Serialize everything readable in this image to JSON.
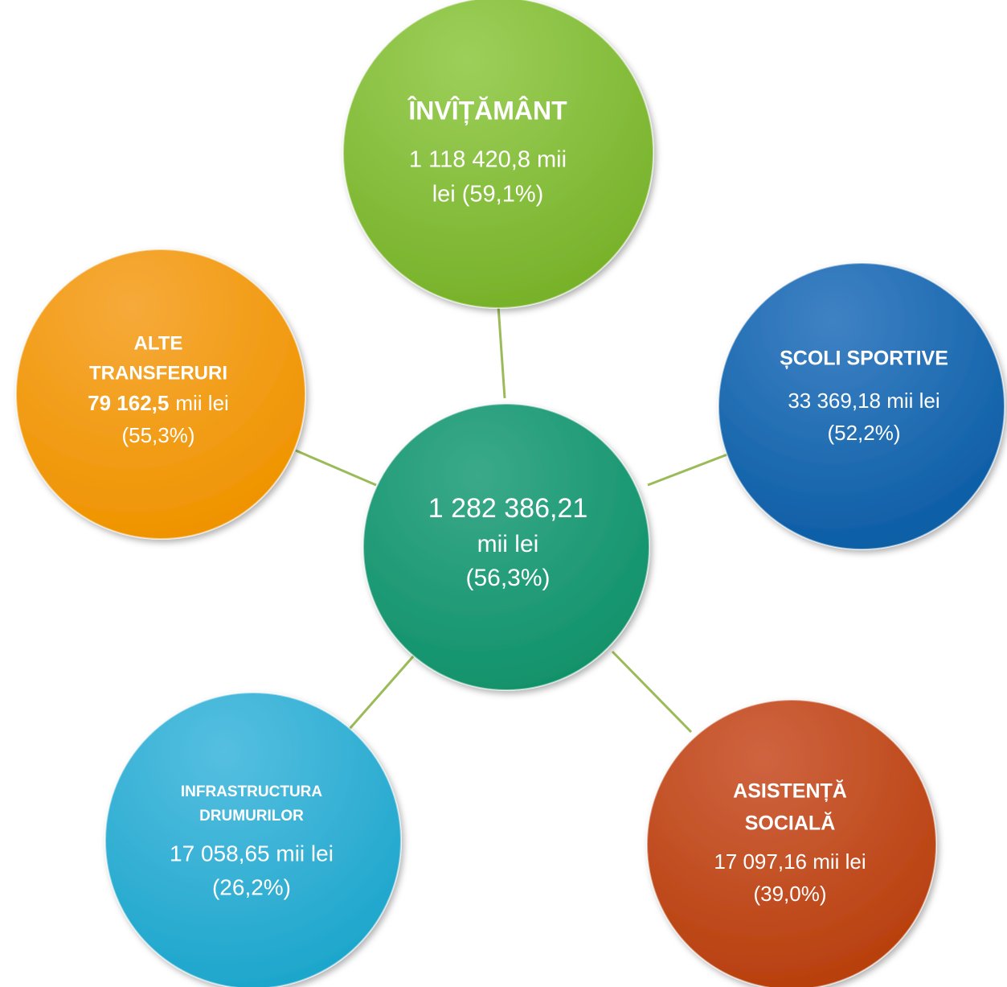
{
  "nodes": [
    {
      "value_lines": [
        "1 282 386,21",
        "mii lei",
        "(56,3%)"
      ]
    },
    {
      "title_lines": [
        "ÎNVÎȚĂMÂNT"
      ],
      "value_lines": [
        "1 118 420,8 mii",
        "lei (59,1%)"
      ]
    },
    {
      "title_lines": [
        "ȘCOLI SPORTIVE"
      ],
      "value_lines": [
        "33 369,18 mii lei",
        "(52,2%)"
      ]
    },
    {
      "title_lines": [
        "ASISTENȚĂ",
        "SOCIALĂ"
      ],
      "value_lines": [
        "17 097,16 mii lei",
        "(39,0%)"
      ]
    },
    {
      "title_lines": [
        "INFRASTRUCTURA",
        "DRUMURILOR"
      ],
      "value_lines": [
        "17 058,65 mii lei",
        "(26,2%)"
      ]
    },
    {
      "title_lines": [
        "ALTE",
        "TRANSFERURI"
      ],
      "amount": "79 162,5",
      "unit": "mii lei",
      "value_lines": [
        "(55,3%)"
      ]
    }
  ]
}
